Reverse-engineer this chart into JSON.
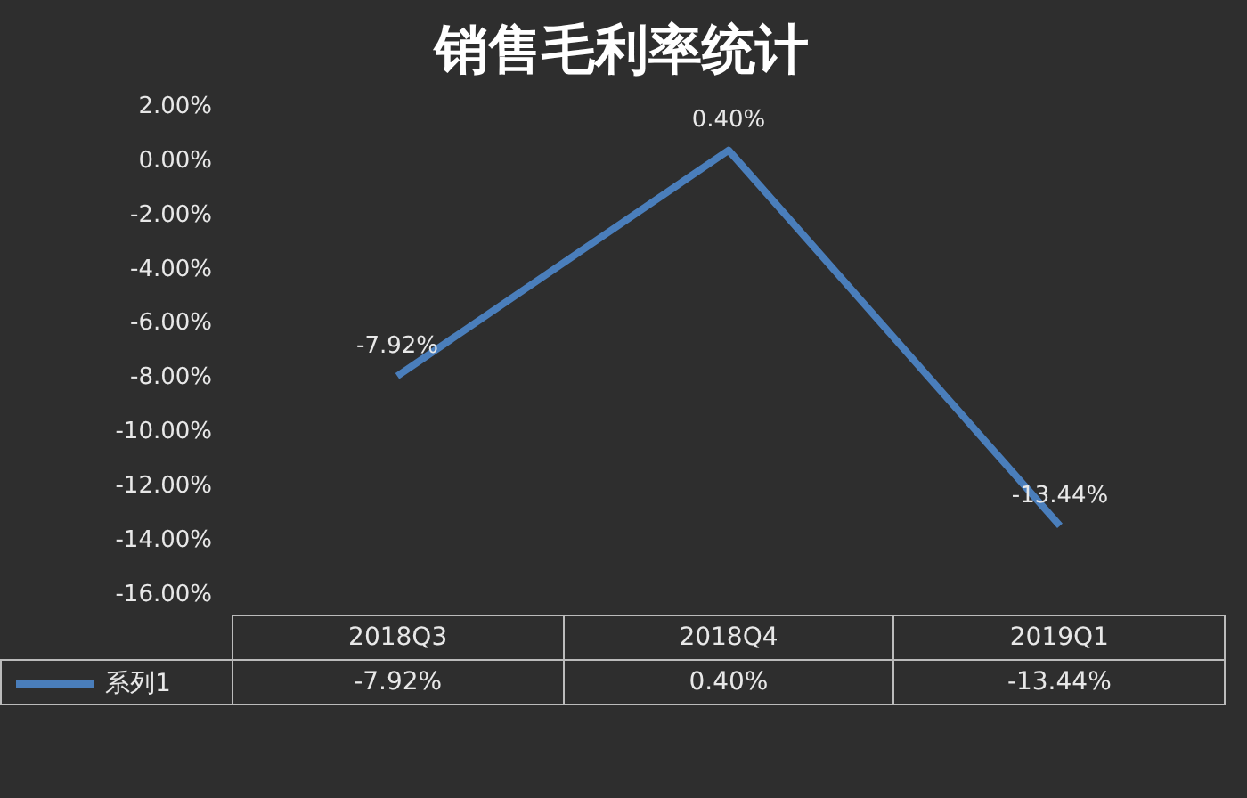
{
  "chart_data": {
    "type": "line",
    "title": "销售毛利率统计",
    "categories": [
      "2018Q3",
      "2018Q4",
      "2019Q1"
    ],
    "series": [
      {
        "name": "系列1",
        "color": "#4a7ebb",
        "values": [
          -7.92,
          0.4,
          -13.44
        ]
      }
    ],
    "value_labels": [
      "-7.92%",
      "0.40%",
      "-13.44%"
    ],
    "ylim": [
      -16,
      2
    ],
    "yticks": [
      {
        "value": -16,
        "label": "-16.00%"
      },
      {
        "value": -14,
        "label": "-14.00%"
      },
      {
        "value": -12,
        "label": "-12.00%"
      },
      {
        "value": -10,
        "label": "-10.00%"
      },
      {
        "value": -8,
        "label": "-8.00%"
      },
      {
        "value": -6,
        "label": "-6.00%"
      },
      {
        "value": -4,
        "label": "-4.00%"
      },
      {
        "value": -2,
        "label": "-2.00%"
      },
      {
        "value": 0,
        "label": "0.00%"
      },
      {
        "value": 2,
        "label": "2.00%"
      }
    ],
    "grid": false,
    "legend": "bottom",
    "marker": "none",
    "line_style": "solid"
  }
}
